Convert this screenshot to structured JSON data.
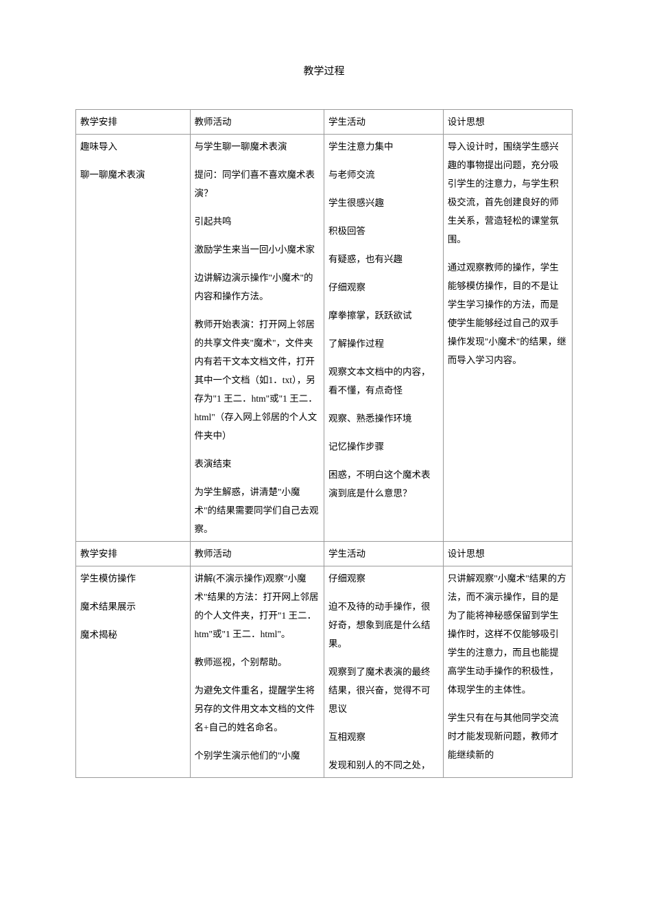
{
  "page_title": "教学过程",
  "headers": {
    "c1": "教学安排",
    "c2": "教师活动",
    "c3": "学生活动",
    "c4": "设计思想"
  },
  "row1": {
    "c1_p1": "趣味导入",
    "c1_p2": "聊一聊魔术表演",
    "c2_p1": "与学生聊一聊魔术表演",
    "c2_p2": "提问：同学们喜不喜欢魔术表演？",
    "c2_p3": "引起共鸣",
    "c2_p4": "激励学生来当一回小小魔术家",
    "c2_p5": "边讲解边演示操作\"小魔术\"的内容和操作方法。",
    "c2_p6": "教师开始表演：打开网上邻居的共享文件夹\"魔术\"，文件夹内有若干文本文档文件，打开其中一个文档（如1．txt），另存为\"1 王二．htm\"或\"1 王二．html\"（存入网上邻居的个人文件夹中）",
    "c2_p7": "表演结束",
    "c2_p8": "为学生解惑，讲清楚\"小魔术\"的结果需要同学们自己去观察。",
    "c3_p1": "学生注意力集中",
    "c3_p2": "与老师交流",
    "c3_p3": "学生很感兴趣",
    "c3_p4": "积极回答",
    "c3_p5": "有疑惑，也有兴趣",
    "c3_p6": "仔细观察",
    "c3_p7": "摩拳擦掌，跃跃欲试",
    "c3_p8": "了解操作过程",
    "c3_p9": "观察文本文档中的内容，看不懂，有点奇怪",
    "c3_p10": "观察、熟悉操作环境",
    "c3_p11": "记忆操作步骤",
    "c3_p12": "困惑，不明白这个魔术表演到底是什么意思？",
    "c4_p1": "导入设计时，围绕学生感兴趣的事物提出问题，充分吸引学生的注意力，与学生积极交流，首先创建良好的师生关系，营造轻松的课堂氛围。",
    "c4_p2": "通过观察教师的操作，学生能够模仿操作，目的不是让学生学习操作的方法，而是使学生能够经过自己的双手操作发现\"小魔术\"的结果，继而导入学习内容。"
  },
  "row2": {
    "c1_p1": "学生模仿操作",
    "c1_p2": "魔术结果展示",
    "c1_p3": "魔术揭秘",
    "c2_p1": "讲解(不演示操作)观察\"小魔术\"结果的方法：打开网上邻居的个人文件夹，打开\"1 王二．htm\"或\"1 王二．html\"。",
    "c2_p2": "教师巡视，个别帮助。",
    "c2_p3": "为避免文件重名，提醒学生将另存的文件用文本文档的文件名+自己的姓名命名。",
    "c2_p4": "个别学生演示他们的\"小魔",
    "c3_p1": "仔细观察",
    "c3_p2": "迫不及待的动手操作，很好奇，想象到底是什么结果。",
    "c3_p3": "观察到了魔术表演的最终结果，很兴奋，觉得不可思议",
    "c3_p4": "互相观察",
    "c3_p5": "发现和别人的不同之处，",
    "c4_p1": "只讲解观察\"小魔术\"结果的方法，而不演示操作，目的是为了能将神秘感保留到学生操作时，这样不仅能够吸引学生的注意力，而且也能提高学生动手操作的积极性，体现学生的主体性。",
    "c4_p2": "学生只有在与其他同学交流时才能发现新问题，教师才能继续新的"
  }
}
